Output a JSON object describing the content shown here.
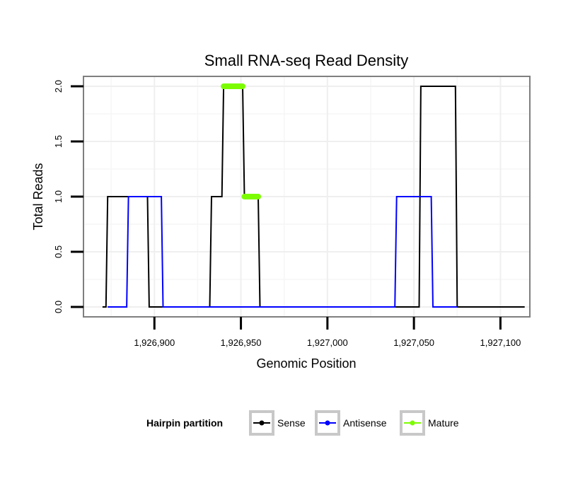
{
  "chart_data": {
    "type": "line",
    "title": "Small RNA-seq Read Density",
    "xlabel": "Genomic Position",
    "ylabel": "Total Reads",
    "xlim": [
      1926859,
      1927117
    ],
    "ylim": [
      -0.09,
      2.09
    ],
    "x_ticks": [
      1926900,
      1926950,
      1927000,
      1927050,
      1927100
    ],
    "x_tick_labels": [
      "1,926,900",
      "1,926,950",
      "1,927,000",
      "1,927,050",
      "1,927,100"
    ],
    "y_ticks": [
      0,
      0.5,
      1,
      1.5,
      2
    ],
    "y_tick_labels": [
      "0.0",
      "0.5",
      "1.0",
      "1.5",
      "2.0"
    ],
    "grid": true,
    "legend": {
      "title": "Hairpin partition",
      "position": "bottom",
      "entries": [
        "Sense",
        "Antisense",
        "Mature"
      ]
    },
    "series": [
      {
        "name": "Sense",
        "color": "#000000",
        "points": [
          [
            1926870,
            0
          ],
          [
            1926872,
            0
          ],
          [
            1926873,
            1
          ],
          [
            1926896,
            1
          ],
          [
            1926897,
            0
          ],
          [
            1926932,
            0
          ],
          [
            1926933,
            1
          ],
          [
            1926939,
            1
          ],
          [
            1926940,
            2
          ],
          [
            1926951,
            2
          ],
          [
            1926952,
            1
          ],
          [
            1926960,
            1
          ],
          [
            1926961,
            0
          ],
          [
            1927053,
            0
          ],
          [
            1927054,
            2
          ],
          [
            1927074,
            2
          ],
          [
            1927075,
            0
          ],
          [
            1927114,
            0
          ]
        ]
      },
      {
        "name": "Antisense",
        "color": "#0000FF",
        "points": [
          [
            1926873,
            0
          ],
          [
            1926884,
            0
          ],
          [
            1926885,
            1
          ],
          [
            1926904,
            1
          ],
          [
            1926905,
            0
          ],
          [
            1926912,
            0
          ],
          [
            1926939,
            0
          ],
          [
            1926960,
            0
          ],
          [
            1927039,
            0
          ],
          [
            1927040,
            1
          ],
          [
            1927060,
            1
          ],
          [
            1927061,
            0
          ],
          [
            1927075,
            0
          ]
        ]
      },
      {
        "name": "Mature",
        "color": "#7CFC00",
        "segments": [
          {
            "x0": 1926940,
            "x1": 1926951,
            "y": 2
          },
          {
            "x0": 1926952,
            "x1": 1926960,
            "y": 1
          }
        ]
      }
    ]
  }
}
